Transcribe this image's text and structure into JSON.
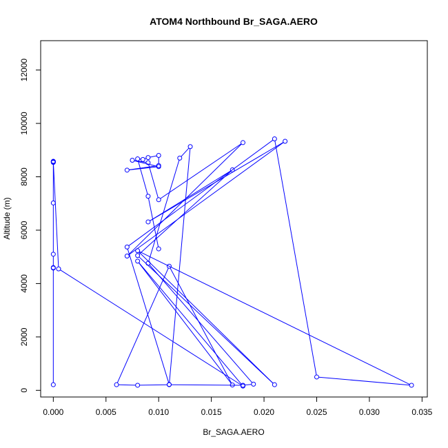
{
  "chart_data": {
    "type": "line",
    "title": "ATOM4 Northbound Br_SAGA.AERO",
    "xlabel": "Br_SAGA.AERO",
    "ylabel": "Altitude (m)",
    "xlim": [
      -0.0012,
      0.0355
    ],
    "ylim": [
      -250,
      13100
    ],
    "xticks": [
      "0.000",
      "0.005",
      "0.010",
      "0.015",
      "0.020",
      "0.025",
      "0.030",
      "0.035"
    ],
    "yticks": [
      "0",
      "2000",
      "4000",
      "6000",
      "8000",
      "10000",
      "12000"
    ],
    "grid": false,
    "series_color": "#0000ff",
    "series": [
      {
        "x": [
          0.0,
          0.0,
          0.0,
          0.0,
          0.0,
          0.0,
          0.0,
          0.0,
          0.0,
          0.0,
          0.0005,
          0.018,
          0.008,
          0.017,
          0.011,
          0.006,
          0.008,
          0.011,
          0.018,
          0.019,
          0.009,
          0.012,
          0.013,
          0.011,
          0.007,
          0.021,
          0.025,
          0.034,
          0.008,
          0.021,
          0.008,
          0.017,
          0.009,
          0.022,
          0.007,
          0.018,
          0.01,
          0.009,
          0.0075,
          0.01,
          0.007,
          0.01,
          0.01,
          0.009,
          0.0085,
          0.008,
          0.009,
          0.01
        ],
        "y": [
          210,
          4580,
          4600,
          5100,
          7020,
          8540,
          8560,
          8570,
          8580,
          8560,
          4550,
          160,
          4840,
          200,
          4650,
          210,
          190,
          210,
          190,
          230,
          4760,
          8700,
          9130,
          220,
          5370,
          9420,
          500,
          190,
          5230,
          210,
          5050,
          8260,
          6310,
          9330,
          5030,
          9280,
          7140,
          8530,
          8620,
          8380,
          8250,
          8420,
          8800,
          8720,
          8650,
          8670,
          7270,
          5300
        ]
      }
    ]
  }
}
